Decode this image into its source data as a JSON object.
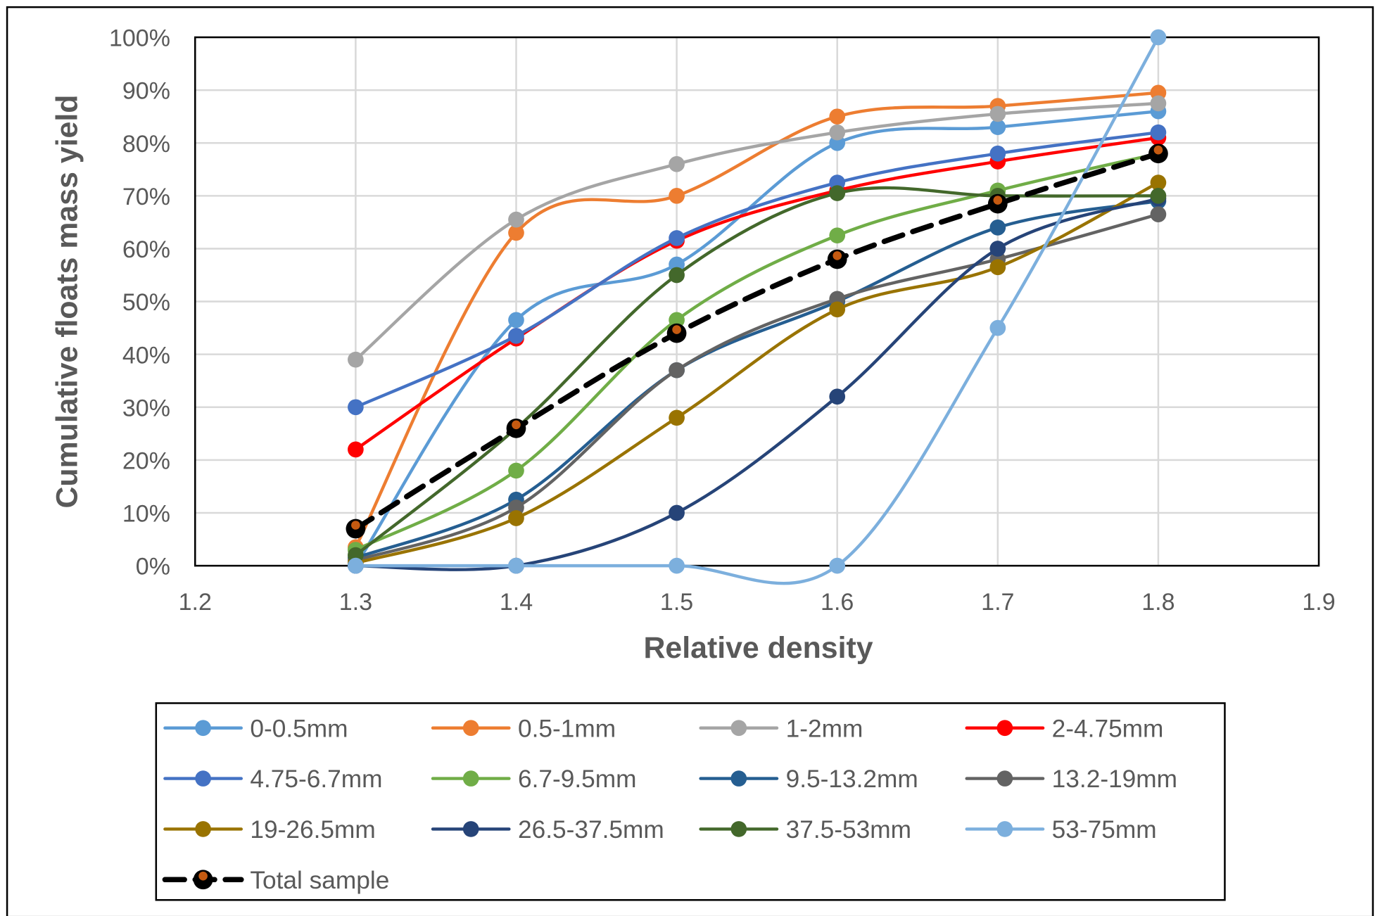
{
  "chart_data": {
    "type": "line",
    "smooth": true,
    "xlabel": "Relative density",
    "ylabel": "Cumulative floats mass yield",
    "xlim": [
      1.2,
      1.9
    ],
    "ylim": [
      0,
      100
    ],
    "xticks": [
      "1.2",
      "1.3",
      "1.4",
      "1.5",
      "1.6",
      "1.7",
      "1.8",
      "1.9"
    ],
    "yticks": [
      "0%",
      "10%",
      "20%",
      "30%",
      "40%",
      "50%",
      "60%",
      "70%",
      "80%",
      "90%",
      "100%"
    ],
    "grid": true,
    "legend_placement": "bottom",
    "x": [
      1.3,
      1.4,
      1.5,
      1.6,
      1.7,
      1.8
    ],
    "series": [
      {
        "name": "0-0.5mm",
        "color": "#5B9BD5",
        "values": [
          0,
          46.5,
          57,
          80,
          83,
          86
        ]
      },
      {
        "name": "0.5-1mm",
        "color": "#ED7D31",
        "values": [
          3.5,
          63,
          70,
          85,
          87,
          89.5
        ]
      },
      {
        "name": "1-2mm",
        "color": "#A5A5A5",
        "values": [
          39,
          65.5,
          76,
          82,
          85.5,
          87.5
        ]
      },
      {
        "name": "2-4.75mm",
        "color": "#FF0000",
        "values": [
          22,
          43,
          61.5,
          71,
          76.5,
          81
        ]
      },
      {
        "name": "4.75-6.7mm",
        "color": "#4472C4",
        "values": [
          30,
          43.5,
          62,
          72.5,
          78,
          82
        ]
      },
      {
        "name": "6.7-9.5mm",
        "color": "#70AD47",
        "values": [
          3,
          18,
          46.5,
          62.5,
          71,
          78
        ]
      },
      {
        "name": "9.5-13.2mm",
        "color": "#255E91",
        "values": [
          1.5,
          12.5,
          37,
          50,
          64,
          69
        ]
      },
      {
        "name": "13.2-19mm",
        "color": "#636363",
        "values": [
          1,
          11,
          37,
          50.5,
          58,
          66.5
        ]
      },
      {
        "name": "19-26.5mm",
        "color": "#997300",
        "values": [
          0.5,
          9,
          28,
          48.5,
          56.5,
          72.5
        ]
      },
      {
        "name": "26.5-37.5mm",
        "color": "#264478",
        "values": [
          0,
          0,
          10,
          32,
          60,
          69.5
        ]
      },
      {
        "name": "37.5-53mm",
        "color": "#43682B",
        "values": [
          2,
          26,
          55,
          70.5,
          70,
          70
        ]
      },
      {
        "name": "53-75mm",
        "color": "#7CAFDD",
        "values": [
          0,
          0,
          0,
          0,
          45,
          100
        ]
      },
      {
        "name": "Total sample",
        "color": "#000000",
        "marker_inner": "#C55A11",
        "dashed": true,
        "values": [
          7,
          26,
          44,
          58,
          68.5,
          78
        ]
      }
    ]
  }
}
